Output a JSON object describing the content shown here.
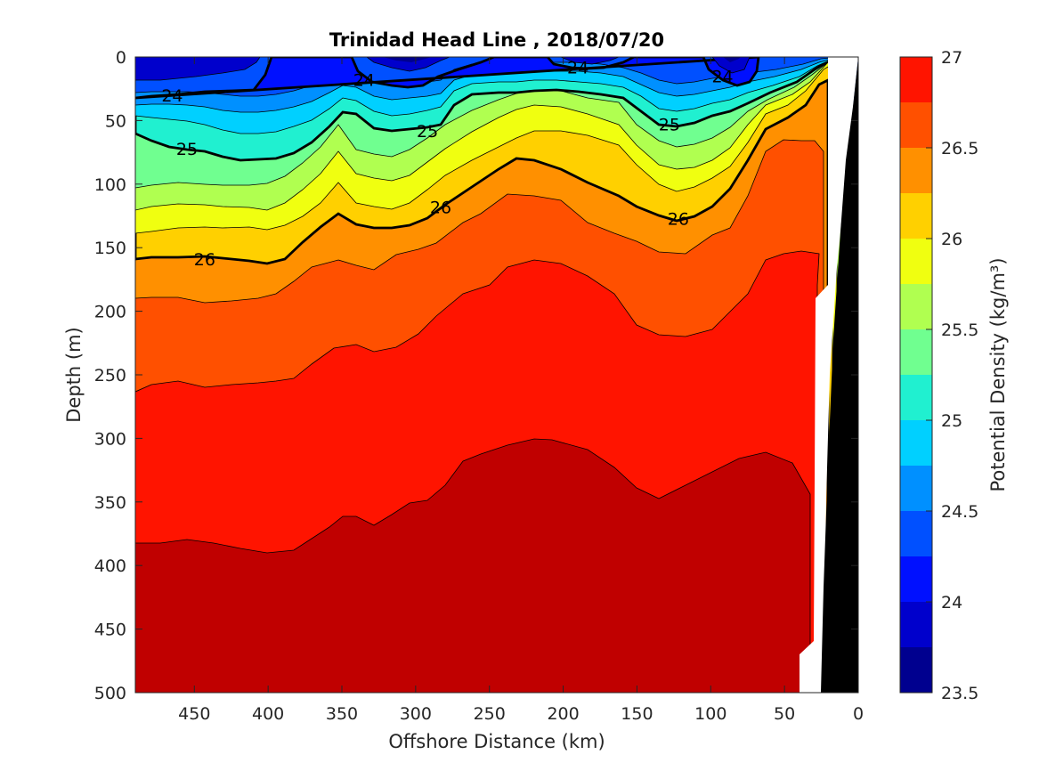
{
  "chart_data": {
    "type": "contour",
    "title": "Trinidad Head Line , 2018/07/20",
    "xlabel": "Offshore Distance (km)",
    "ylabel": "Depth (m)",
    "xlim": [
      490,
      0
    ],
    "ylim": [
      500,
      0
    ],
    "x_ticks": [
      "450",
      "400",
      "350",
      "300",
      "250",
      "200",
      "150",
      "100",
      "50",
      "0"
    ],
    "y_ticks": [
      "0",
      "50",
      "100",
      "150",
      "200",
      "250",
      "300",
      "350",
      "400",
      "450",
      "500"
    ],
    "colorbar": {
      "label": "Potential Density (kg/m³)",
      "range": [
        23.5,
        27
      ],
      "ticks": [
        "27",
        "26.5",
        "26",
        "25.5",
        "25",
        "24.5",
        "24",
        "23.5"
      ],
      "step": 0.25,
      "colors": [
        "#00008f",
        "#0000cc",
        "#0010ff",
        "#0050ff",
        "#0090ff",
        "#00d0ff",
        "#20f0d0",
        "#70ff90",
        "#b0ff50",
        "#f0ff10",
        "#ffd000",
        "#ff9000",
        "#ff5000",
        "#ff1400",
        "#c00000"
      ]
    },
    "contour_labels": [
      {
        "text": "24",
        "x": 465,
        "y": 30
      },
      {
        "text": "24",
        "x": 335,
        "y": 18
      },
      {
        "text": "24",
        "x": 190,
        "y": 8
      },
      {
        "text": "24",
        "x": 92,
        "y": 15
      },
      {
        "text": "25",
        "x": 455,
        "y": 72
      },
      {
        "text": "25",
        "x": 292,
        "y": 58
      },
      {
        "text": "25",
        "x": 128,
        "y": 53
      },
      {
        "text": "26",
        "x": 443,
        "y": 159
      },
      {
        "text": "26",
        "x": 283,
        "y": 118
      },
      {
        "text": "26",
        "x": 122,
        "y": 127
      }
    ],
    "bathymetry": "black region at 0–25 km offshore"
  }
}
